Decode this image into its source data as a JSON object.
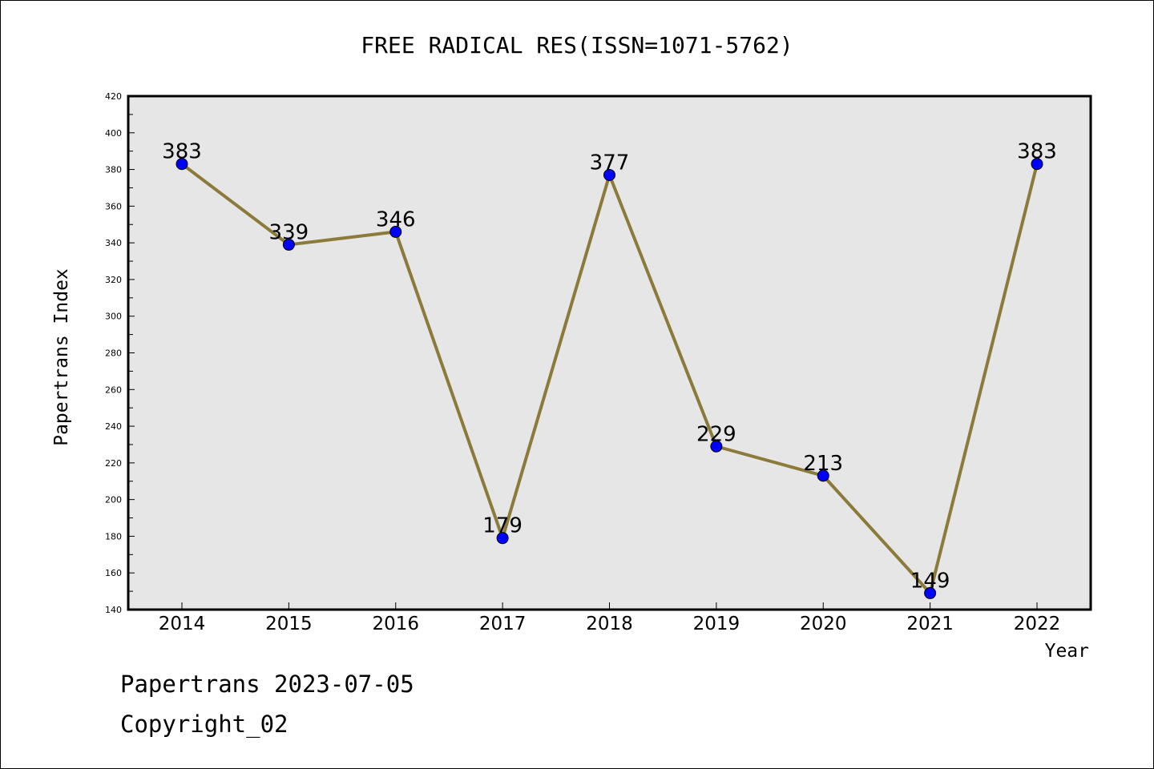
{
  "chart_data": {
    "type": "line",
    "title": "FREE RADICAL RES(ISSN=1071-5762)",
    "xlabel": "Year",
    "ylabel": "Papertrans Index",
    "categories": [
      "2014",
      "2015",
      "2016",
      "2017",
      "2018",
      "2019",
      "2020",
      "2021",
      "2022"
    ],
    "series": [
      {
        "values": [
          383,
          339,
          346,
          179,
          377,
          229,
          213,
          149,
          383
        ]
      }
    ],
    "data_labels": [
      "383",
      "339",
      "346",
      "179",
      "377",
      "229",
      "213",
      "149",
      "383"
    ],
    "ylim": [
      140,
      420
    ],
    "yticks": [
      140,
      160,
      180,
      200,
      220,
      240,
      260,
      280,
      300,
      320,
      340,
      360,
      380,
      400,
      420
    ],
    "grid": false,
    "legend": "none",
    "colors": {
      "line": "#8b7a3a",
      "marker": "#0000ff",
      "plot_bg": "#e6e6e6"
    }
  },
  "footer": {
    "line1": "Papertrans 2023-07-05",
    "line2": "Copyright_02"
  }
}
